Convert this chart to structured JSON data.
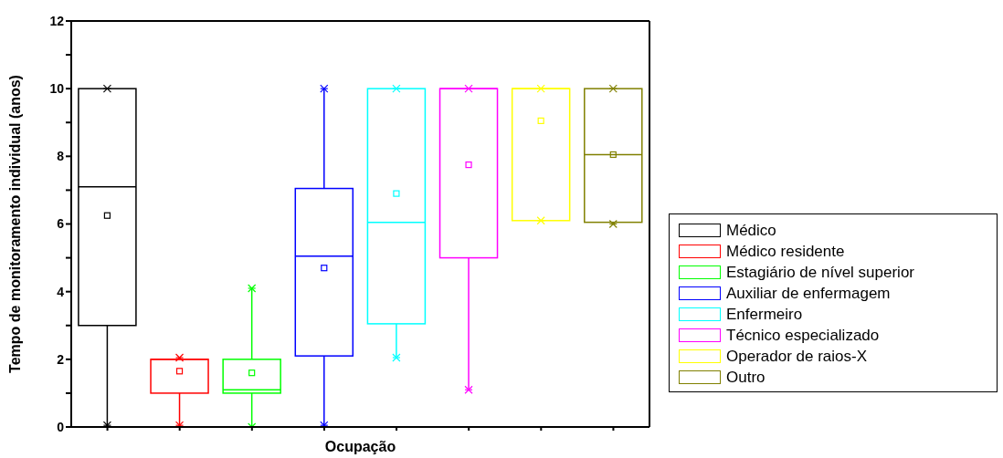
{
  "chart_data": {
    "type": "box",
    "xlabel": "Ocupação",
    "ylabel": "Tempo de monitoramento individual (anos)",
    "categories": [
      null,
      null,
      null,
      null,
      null,
      null,
      null,
      null
    ],
    "ylim": [
      0,
      12
    ],
    "yticks": [
      0,
      {
        "value": 1,
        "label": null
      },
      2,
      {
        "value": 3,
        "label": null
      },
      4,
      {
        "value": 5,
        "label": null
      },
      6,
      {
        "value": 7,
        "label": null
      },
      8,
      {
        "value": 9,
        "label": null
      },
      10,
      {
        "value": 11,
        "label": null
      },
      12
    ],
    "tick_labels": "y",
    "legend": "right",
    "grid": false,
    "series": [
      {
        "name": "Médico",
        "color": "#000000",
        "boxes": [
          {
            "low": 0.05,
            "q1": 3.0,
            "median": 7.1,
            "q3": 10,
            "high": 10,
            "mean": 6.25,
            "outliers": [
              0.05,
              10
            ]
          },
          null,
          null,
          null,
          null,
          null,
          null,
          null
        ]
      },
      {
        "name": "Médico residente",
        "color": "#ff0000",
        "boxes": [
          null,
          {
            "low": 0.05,
            "q1": 1.0,
            "median": 2.0,
            "q3": 2.0,
            "high": 2.05,
            "mean": 1.65,
            "outliers": [
              0.05,
              2.05
            ]
          },
          null,
          null,
          null,
          null,
          null,
          null
        ]
      },
      {
        "name": "Estagiário de nível superior",
        "color": "#00ff00",
        "boxes": [
          null,
          null,
          {
            "low": 0,
            "q1": 1.0,
            "median": 1.1,
            "q3": 2.0,
            "high": 4.1,
            "mean": 1.6,
            "outliers": [
              0,
              4.1
            ]
          },
          null,
          null,
          null,
          null,
          null
        ]
      },
      {
        "name": "Auxiliar de enfermagem",
        "color": "#0000ff",
        "boxes": [
          null,
          null,
          null,
          {
            "low": 0.05,
            "q1": 2.1,
            "median": 5.05,
            "q3": 7.05,
            "high": 10,
            "mean": 4.7,
            "outliers": [
              0.05,
              10
            ]
          },
          null,
          null,
          null,
          null
        ]
      },
      {
        "name": "Enfermeiro",
        "color": "#00ffff",
        "boxes": [
          null,
          null,
          null,
          null,
          {
            "low": 2.05,
            "q1": 3.05,
            "median": 6.05,
            "q3": 10,
            "high": 10,
            "mean": 6.9,
            "outliers": [
              2.05,
              10
            ]
          },
          null,
          null,
          null
        ]
      },
      {
        "name": "Técnico especializado",
        "color": "#ff00ff",
        "boxes": [
          null,
          null,
          null,
          null,
          null,
          {
            "low": 1.1,
            "q1": 5.0,
            "median": 10,
            "q3": 10,
            "high": 10,
            "mean": 7.75,
            "outliers": [
              1.1,
              10
            ]
          },
          null,
          null
        ]
      },
      {
        "name": "Operador de raios-X",
        "color": "#ffff00",
        "boxes": [
          null,
          null,
          null,
          null,
          null,
          null,
          {
            "low": 6.1,
            "q1": 6.1,
            "median": 10,
            "q3": 10,
            "high": 10,
            "mean": 9.05,
            "outliers": [
              6.1,
              10
            ]
          },
          null
        ]
      },
      {
        "name": "Outro",
        "color": "#808000",
        "boxes": [
          null,
          null,
          null,
          null,
          null,
          null,
          null,
          {
            "low": 6.0,
            "q1": 6.05,
            "median": 8.05,
            "q3": 10,
            "high": 10,
            "mean": 8.05,
            "outliers": [
              6.0,
              10
            ]
          }
        ]
      }
    ]
  }
}
